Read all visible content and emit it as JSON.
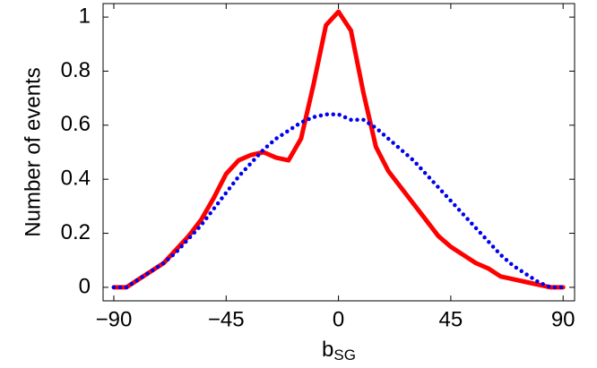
{
  "chart_data": {
    "type": "line",
    "x_label": "b",
    "x_label_sub": "SG",
    "y_label": "Number of events",
    "x": [
      -90,
      -85,
      -80,
      -75,
      -70,
      -65,
      -60,
      -55,
      -50,
      -45,
      -40,
      -35,
      -30,
      -25,
      -20,
      -15,
      -10,
      -5,
      0,
      5,
      10,
      15,
      20,
      25,
      30,
      35,
      40,
      45,
      50,
      55,
      60,
      65,
      70,
      75,
      80,
      85,
      90
    ],
    "series": [
      {
        "color": "#ff0000",
        "style": "solid",
        "values": [
          0,
          0,
          0.03,
          0.06,
          0.09,
          0.14,
          0.19,
          0.25,
          0.33,
          0.42,
          0.47,
          0.49,
          0.5,
          0.48,
          0.47,
          0.55,
          0.75,
          0.97,
          1.02,
          0.95,
          0.72,
          0.52,
          0.43,
          0.37,
          0.31,
          0.25,
          0.19,
          0.15,
          0.12,
          0.09,
          0.07,
          0.04,
          0.03,
          0.02,
          0.01,
          0,
          0
        ]
      },
      {
        "color": "#0000ee",
        "style": "dotted",
        "values": [
          0,
          0,
          0.03,
          0.06,
          0.09,
          0.13,
          0.18,
          0.23,
          0.29,
          0.35,
          0.41,
          0.46,
          0.51,
          0.55,
          0.58,
          0.61,
          0.63,
          0.64,
          0.64,
          0.62,
          0.62,
          0.59,
          0.55,
          0.51,
          0.47,
          0.42,
          0.37,
          0.32,
          0.27,
          0.22,
          0.17,
          0.12,
          0.08,
          0.05,
          0.02,
          0,
          0
        ]
      }
    ],
    "xlim": [
      -94.3,
      94.6
    ],
    "ylim": [
      -0.05,
      1.05
    ],
    "xticks": [
      {
        "value": -90,
        "label": "−90"
      },
      {
        "value": -45,
        "label": "−45"
      },
      0,
      45,
      90
    ],
    "yticks": [
      0,
      0.2,
      0.4,
      0.6,
      0.8,
      1
    ]
  }
}
